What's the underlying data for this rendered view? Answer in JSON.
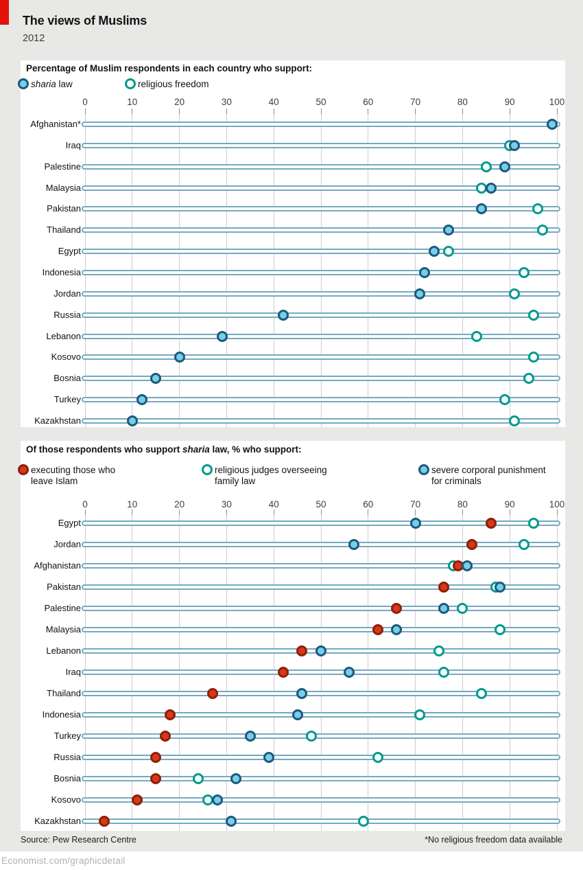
{
  "page": {
    "title": "The views of Muslims",
    "subtitle": "2012",
    "source": "Source: Pew Research Centre",
    "footnote": "*No religious freedom data available",
    "site": "Economist.com/graphicdetail"
  },
  "colors": {
    "background": "#e8e8e6",
    "accent_red": "#e3120b",
    "dot_blue_fill": "#79cde8",
    "dot_blue_ring": "#1b5a7d",
    "dot_teal_ring": "#019a8e",
    "dot_red_fill": "#d6381b",
    "dot_red_ring": "#8e1f07",
    "track": "#76a8c1",
    "gridline": "#cdcdcd"
  },
  "chart_data": [
    {
      "type": "scatter",
      "title": "Percentage of Muslim respondents in each country who support:",
      "xlim": [
        0,
        100
      ],
      "xticks": [
        0,
        10,
        20,
        30,
        40,
        50,
        60,
        70,
        80,
        90,
        100
      ],
      "grid": true,
      "legend_position": "top",
      "legend": [
        {
          "style": "blue",
          "italic": "sharia",
          "label": " law"
        },
        {
          "style": "teal",
          "label": "religious freedom"
        }
      ],
      "categories": [
        "Afghanistan*",
        "Iraq",
        "Palestine",
        "Malaysia",
        "Pakistan",
        "Thailand",
        "Egypt",
        "Indonesia",
        "Jordan",
        "Russia",
        "Lebanon",
        "Kosovo",
        "Bosnia",
        "Turkey",
        "Kazakhstan"
      ],
      "series": [
        {
          "name": "sharia law",
          "style": "blue",
          "values": [
            99,
            91,
            89,
            86,
            84,
            77,
            74,
            72,
            71,
            42,
            29,
            20,
            15,
            12,
            10
          ]
        },
        {
          "name": "religious freedom",
          "style": "teal",
          "values": [
            null,
            90,
            85,
            84,
            96,
            97,
            77,
            93,
            91,
            95,
            83,
            95,
            94,
            89,
            91
          ]
        }
      ]
    },
    {
      "type": "scatter",
      "title_pre": "Of those respondents who support ",
      "title_italic": "sharia",
      "title_post": " law, % who support:",
      "xlim": [
        0,
        100
      ],
      "xticks": [
        0,
        10,
        20,
        30,
        40,
        50,
        60,
        70,
        80,
        90,
        100
      ],
      "grid": true,
      "legend_position": "top",
      "legend": [
        {
          "style": "red",
          "line1": "executing those who",
          "line2": "leave Islam"
        },
        {
          "style": "teal",
          "line1": "religious judges overseeing",
          "line2": "family law"
        },
        {
          "style": "blue",
          "line1": "severe corporal punishment",
          "line2": "for criminals"
        }
      ],
      "categories": [
        "Egypt",
        "Jordan",
        "Afghanistan",
        "Pakistan",
        "Palestine",
        "Malaysia",
        "Lebanon",
        "Iraq",
        "Thailand",
        "Indonesia",
        "Turkey",
        "Russia",
        "Bosnia",
        "Kosovo",
        "Kazakhstan"
      ],
      "series": [
        {
          "name": "executing those who leave Islam",
          "style": "red",
          "values": [
            86,
            82,
            79,
            76,
            66,
            62,
            46,
            42,
            27,
            18,
            17,
            15,
            15,
            11,
            4
          ]
        },
        {
          "name": "religious judges overseeing family law",
          "style": "teal",
          "values": [
            95,
            93,
            78,
            87,
            80,
            88,
            75,
            76,
            84,
            71,
            48,
            62,
            24,
            26,
            59
          ]
        },
        {
          "name": "severe corporal punishment for criminals",
          "style": "blue",
          "values": [
            70,
            57,
            81,
            88,
            76,
            66,
            50,
            56,
            46,
            45,
            35,
            39,
            32,
            28,
            31
          ]
        }
      ]
    }
  ]
}
